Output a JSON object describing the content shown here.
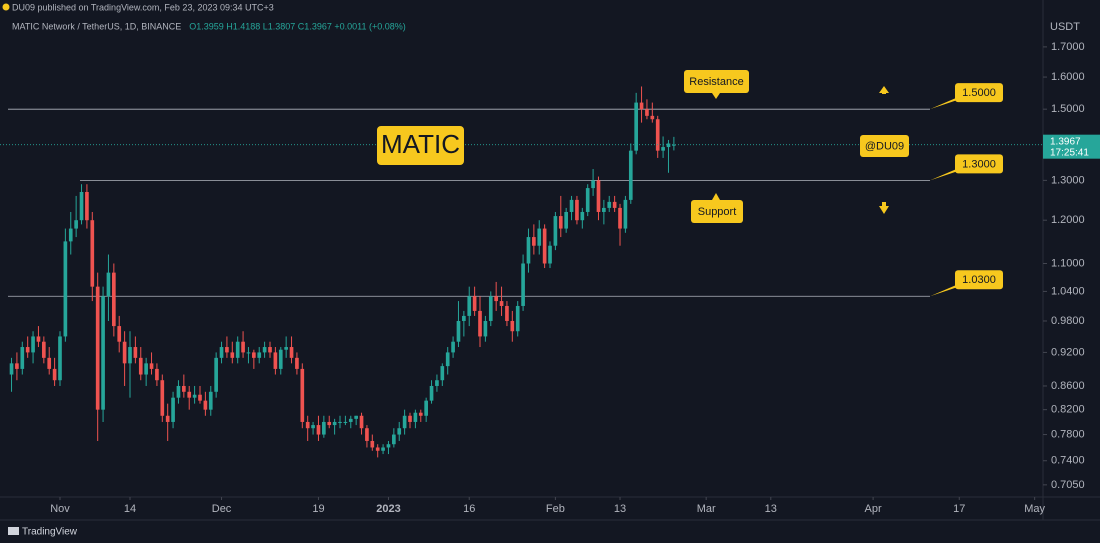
{
  "chart_data": {
    "type": "candlestick",
    "publisher": "DU09 published on TradingView.com, Feb 23, 2023 09:34 UTC+3",
    "title": "MATIC Network / TetherUS, 1D, BINANCE",
    "ohlc_text": "O1.3959 H1.4188 L1.3807 C1.3967 +0.0011 (+0.08%)",
    "currency": "USDT",
    "countdown": "17:25:41",
    "brand": "TradingView",
    "up_color": "#26a69a",
    "down_color": "#ef5350",
    "log_scale": true,
    "grid": false,
    "open": [
      0.88,
      0.9,
      0.89,
      0.93,
      0.92,
      0.95,
      0.94,
      0.91,
      0.89,
      0.87,
      0.95,
      1.15,
      1.18,
      1.2,
      1.27,
      1.2,
      1.05,
      0.82,
      1.03,
      1.08,
      0.97,
      0.94,
      0.9,
      0.93,
      0.91,
      0.88,
      0.9,
      0.89,
      0.87,
      0.81,
      0.8,
      0.84,
      0.86,
      0.85,
      0.84,
      0.845,
      0.835,
      0.82,
      0.85,
      0.91,
      0.93,
      0.92,
      0.91,
      0.94,
      0.92,
      0.92,
      0.91,
      0.92,
      0.93,
      0.92,
      0.89,
      0.925,
      0.93,
      0.91,
      0.89,
      0.8,
      0.79,
      0.795,
      0.78,
      0.8,
      0.795,
      0.8,
      0.8,
      0.8,
      0.805,
      0.81,
      0.79,
      0.77,
      0.76,
      0.755,
      0.76,
      0.765,
      0.78,
      0.79,
      0.81,
      0.8,
      0.815,
      0.81,
      0.835,
      0.86,
      0.87,
      0.895,
      0.92,
      0.94,
      0.98,
      0.99,
      1.03,
      1.0,
      0.95,
      0.98,
      1.03,
      1.02,
      1.01,
      0.98,
      0.96,
      1.01,
      1.1,
      1.16,
      1.14,
      1.18,
      1.1,
      1.14,
      1.21,
      1.18,
      1.22,
      1.25,
      1.2,
      1.22,
      1.28,
      1.3,
      1.22,
      1.23,
      1.245,
      1.23,
      1.18,
      1.25,
      1.38,
      1.52,
      1.5,
      1.48,
      1.47,
      1.38,
      1.39,
      1.3959
    ],
    "high": [
      0.91,
      0.92,
      0.94,
      0.95,
      0.96,
      0.97,
      0.95,
      0.93,
      0.91,
      0.96,
      1.18,
      1.22,
      1.26,
      1.29,
      1.29,
      1.22,
      1.08,
      1.05,
      1.12,
      1.1,
      0.99,
      0.96,
      0.96,
      0.95,
      0.93,
      0.91,
      0.92,
      0.9,
      0.88,
      0.83,
      0.85,
      0.87,
      0.88,
      0.86,
      0.86,
      0.86,
      0.85,
      0.86,
      0.92,
      0.94,
      0.95,
      0.94,
      0.95,
      0.96,
      0.93,
      0.925,
      0.93,
      0.94,
      0.94,
      0.93,
      0.93,
      0.95,
      0.95,
      0.92,
      0.9,
      0.81,
      0.8,
      0.81,
      0.81,
      0.81,
      0.805,
      0.81,
      0.81,
      0.81,
      0.81,
      0.815,
      0.795,
      0.78,
      0.765,
      0.765,
      0.77,
      0.79,
      0.8,
      0.82,
      0.815,
      0.82,
      0.82,
      0.84,
      0.87,
      0.88,
      0.9,
      0.93,
      0.95,
      1.02,
      1.0,
      1.05,
      1.05,
      1.03,
      0.99,
      1.04,
      1.06,
      1.05,
      1.02,
      1.0,
      1.02,
      1.12,
      1.18,
      1.19,
      1.2,
      1.19,
      1.15,
      1.22,
      1.26,
      1.23,
      1.26,
      1.26,
      1.23,
      1.29,
      1.33,
      1.31,
      1.25,
      1.26,
      1.26,
      1.24,
      1.26,
      1.4,
      1.55,
      1.57,
      1.53,
      1.52,
      1.48,
      1.42,
      1.41,
      1.4188
    ],
    "low": [
      0.85,
      0.87,
      0.88,
      0.91,
      0.9,
      0.93,
      0.9,
      0.88,
      0.86,
      0.86,
      0.94,
      1.12,
      1.16,
      1.19,
      1.18,
      1.02,
      0.77,
      0.8,
      0.98,
      0.95,
      0.92,
      0.86,
      0.84,
      0.9,
      0.87,
      0.86,
      0.88,
      0.86,
      0.8,
      0.77,
      0.79,
      0.83,
      0.84,
      0.82,
      0.83,
      0.83,
      0.81,
      0.81,
      0.84,
      0.9,
      0.91,
      0.9,
      0.9,
      0.91,
      0.9,
      0.89,
      0.9,
      0.91,
      0.91,
      0.88,
      0.88,
      0.91,
      0.9,
      0.88,
      0.79,
      0.77,
      0.78,
      0.77,
      0.775,
      0.79,
      0.78,
      0.79,
      0.795,
      0.79,
      0.795,
      0.78,
      0.76,
      0.755,
      0.745,
      0.75,
      0.75,
      0.76,
      0.77,
      0.78,
      0.79,
      0.79,
      0.8,
      0.8,
      0.83,
      0.85,
      0.86,
      0.88,
      0.91,
      0.93,
      0.95,
      0.97,
      0.99,
      0.93,
      0.94,
      0.97,
      1.0,
      0.99,
      0.97,
      0.94,
      0.95,
      1.0,
      1.08,
      1.12,
      1.12,
      1.09,
      1.09,
      1.13,
      1.16,
      1.17,
      1.2,
      1.19,
      1.18,
      1.21,
      1.26,
      1.2,
      1.19,
      1.22,
      1.22,
      1.14,
      1.17,
      1.24,
      1.37,
      1.46,
      1.47,
      1.46,
      1.36,
      1.36,
      1.32,
      1.3807
    ],
    "close": [
      0.9,
      0.89,
      0.93,
      0.92,
      0.95,
      0.94,
      0.91,
      0.89,
      0.87,
      0.95,
      1.15,
      1.18,
      1.2,
      1.27,
      1.2,
      1.05,
      0.82,
      1.03,
      1.08,
      0.97,
      0.94,
      0.9,
      0.93,
      0.91,
      0.88,
      0.9,
      0.89,
      0.87,
      0.81,
      0.8,
      0.84,
      0.86,
      0.85,
      0.84,
      0.845,
      0.835,
      0.82,
      0.85,
      0.91,
      0.93,
      0.92,
      0.91,
      0.94,
      0.92,
      0.92,
      0.91,
      0.92,
      0.93,
      0.92,
      0.89,
      0.925,
      0.93,
      0.91,
      0.89,
      0.8,
      0.79,
      0.795,
      0.78,
      0.8,
      0.795,
      0.8,
      0.8,
      0.8,
      0.805,
      0.81,
      0.79,
      0.77,
      0.76,
      0.755,
      0.76,
      0.765,
      0.78,
      0.79,
      0.81,
      0.8,
      0.815,
      0.81,
      0.835,
      0.86,
      0.87,
      0.895,
      0.92,
      0.94,
      0.98,
      0.99,
      1.03,
      1.0,
      0.95,
      0.98,
      1.03,
      1.02,
      1.01,
      0.98,
      0.96,
      1.01,
      1.1,
      1.16,
      1.14,
      1.18,
      1.1,
      1.14,
      1.21,
      1.18,
      1.22,
      1.25,
      1.2,
      1.22,
      1.28,
      1.3,
      1.22,
      1.23,
      1.245,
      1.23,
      1.18,
      1.25,
      1.38,
      1.52,
      1.5,
      1.48,
      1.47,
      1.38,
      1.39,
      1.4,
      1.3967
    ],
    "xlim": [
      -2.14,
      191.55
    ],
    "xticks": [
      {
        "value": 9,
        "label": "Nov"
      },
      {
        "value": 22,
        "label": "14"
      },
      {
        "value": 39,
        "label": "Dec"
      },
      {
        "value": 57,
        "label": "19"
      },
      {
        "value": 70,
        "label": "2023"
      },
      {
        "value": 85,
        "label": "16"
      },
      {
        "value": 101,
        "label": "Feb"
      },
      {
        "value": 113,
        "label": "13"
      },
      {
        "value": 129,
        "label": "Mar"
      },
      {
        "value": 141,
        "label": "13"
      },
      {
        "value": 160,
        "label": "Apr"
      },
      {
        "value": 176,
        "label": "17"
      },
      {
        "value": 190,
        "label": "May"
      }
    ],
    "ylim": [
      0.688,
      1.868
    ],
    "yticks": [
      {
        "value": 1.7,
        "label": "1.7000"
      },
      {
        "value": 1.6,
        "label": "1.6000"
      },
      {
        "value": 1.5,
        "label": "1.5000"
      },
      {
        "value": 1.3,
        "label": "1.3000"
      },
      {
        "value": 1.2,
        "label": "1.2000"
      },
      {
        "value": 1.1,
        "label": "1.1000"
      },
      {
        "value": 1.04,
        "label": "1.0400"
      },
      {
        "value": 0.98,
        "label": "0.9800"
      },
      {
        "value": 0.92,
        "label": "0.9200"
      },
      {
        "value": 0.86,
        "label": "0.8600"
      },
      {
        "value": 0.82,
        "label": "0.8200"
      },
      {
        "value": 0.78,
        "label": "0.7800"
      },
      {
        "value": 0.74,
        "label": "0.7400"
      },
      {
        "value": 0.705,
        "label": "0.7050"
      }
    ],
    "levels": [
      {
        "value": 1.5,
        "label": "1.5000"
      },
      {
        "value": 1.3,
        "label": "1.3000"
      },
      {
        "value": 1.03,
        "label": "1.0300"
      }
    ],
    "annotations": {
      "symbol": "MATIC",
      "resistance": "Resistance",
      "support": "Support",
      "watermark": "@DU09"
    }
  }
}
